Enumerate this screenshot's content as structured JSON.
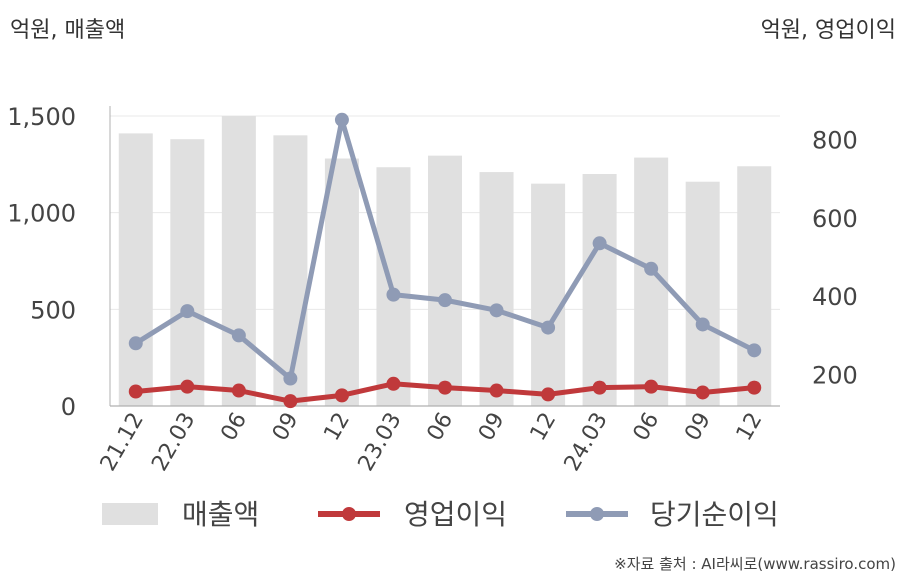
{
  "units": {
    "left": "억원, 매출액",
    "right": "억원, 영업이익"
  },
  "source_note": "※자료 출처 : AI라씨로(www.rassiro.com)",
  "colors": {
    "revenue": "#e0e0e0",
    "operating_profit": "#c0393b",
    "net_income": "#8f9bb5",
    "axis": "#b0b0b0",
    "grid": "#e8e8e8",
    "text": "#444444"
  },
  "chart_data": {
    "type": "bar",
    "categories": [
      "21.12",
      "22.03",
      "06",
      "09",
      "12",
      "23.03",
      "06",
      "09",
      "12",
      "24.03",
      "06",
      "09",
      "12"
    ],
    "series": [
      {
        "name": "매출액",
        "type": "bar",
        "axis": "left",
        "values": [
          1410,
          1380,
          1500,
          1400,
          1280,
          1235,
          1295,
          1210,
          1150,
          1200,
          1285,
          1160,
          1240
        ]
      },
      {
        "name": "영업이익",
        "type": "line",
        "axis": "left",
        "values": [
          75,
          100,
          80,
          25,
          55,
          115,
          95,
          80,
          60,
          95,
          100,
          70,
          95
        ]
      },
      {
        "name": "당기순이익",
        "type": "line",
        "axis": "right",
        "values": [
          280,
          362,
          300,
          190,
          850,
          404,
          390,
          364,
          320,
          535,
          470,
          328,
          262
        ]
      }
    ],
    "left_axis": {
      "ticks": [
        0,
        500,
        1000,
        1500
      ],
      "tick_labels": [
        "0",
        "500",
        "1,000",
        "1,500"
      ],
      "ylim": [
        0,
        1500
      ]
    },
    "right_axis": {
      "ticks": [
        200,
        400,
        600,
        800
      ],
      "tick_labels": [
        "200",
        "400",
        "600",
        "800"
      ],
      "ylim": [
        120,
        852
      ]
    },
    "grid": true,
    "legend_position": "bottom"
  }
}
